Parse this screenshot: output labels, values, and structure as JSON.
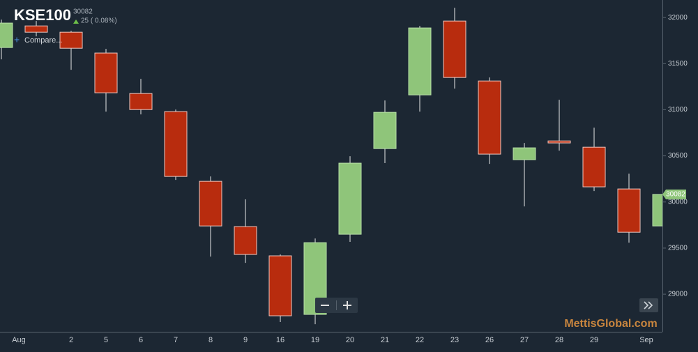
{
  "chart_data": {
    "type": "candlestick",
    "title": "KSE100",
    "last_price_text": "30082",
    "change_text": "25 ( 0.08%)",
    "compare_text": "Compare...",
    "watermark": "MettisGlobal.com",
    "categories": [
      null,
      null,
      "2",
      "5",
      "6",
      "7",
      "8",
      "9",
      "16",
      "19",
      "20",
      "21",
      "22",
      "23",
      "26",
      "27",
      "28",
      "29",
      null,
      null
    ],
    "x_month_labels": [
      "Aug",
      "Sep"
    ],
    "up_color": "#8fc57a",
    "down_color": "#b82c0e",
    "series": [
      {
        "name": "KSE100",
        "open": [
          31675,
          31909,
          31841,
          31615,
          31176,
          30980,
          30224,
          29733,
          29416,
          28781,
          29650,
          30579,
          31161,
          31962,
          31312,
          30458,
          30662,
          30594,
          30141,
          29740
        ],
        "high": [
          31977,
          31962,
          31856,
          31660,
          31335,
          31002,
          30277,
          30028,
          29431,
          29604,
          30496,
          31101,
          31909,
          32106,
          31350,
          30640,
          31108,
          30806,
          30307,
          30082
        ],
        "low": [
          31547,
          31796,
          31433,
          30980,
          30950,
          30239,
          29408,
          29340,
          28698,
          28675,
          29567,
          30421,
          30980,
          31229,
          30413,
          29952,
          30557,
          30118,
          29559,
          29740
        ],
        "close": [
          31940,
          31841,
          31667,
          31184,
          31002,
          30277,
          29740,
          29431,
          28766,
          29559,
          30421,
          30972,
          31887,
          31350,
          30519,
          30587,
          30640,
          30164,
          29672,
          30082
        ]
      }
    ],
    "ylim": [
      28600,
      32190
    ],
    "yticks": [
      29000,
      29500,
      30000,
      30500,
      31000,
      31500,
      32000
    ],
    "grid": false
  }
}
